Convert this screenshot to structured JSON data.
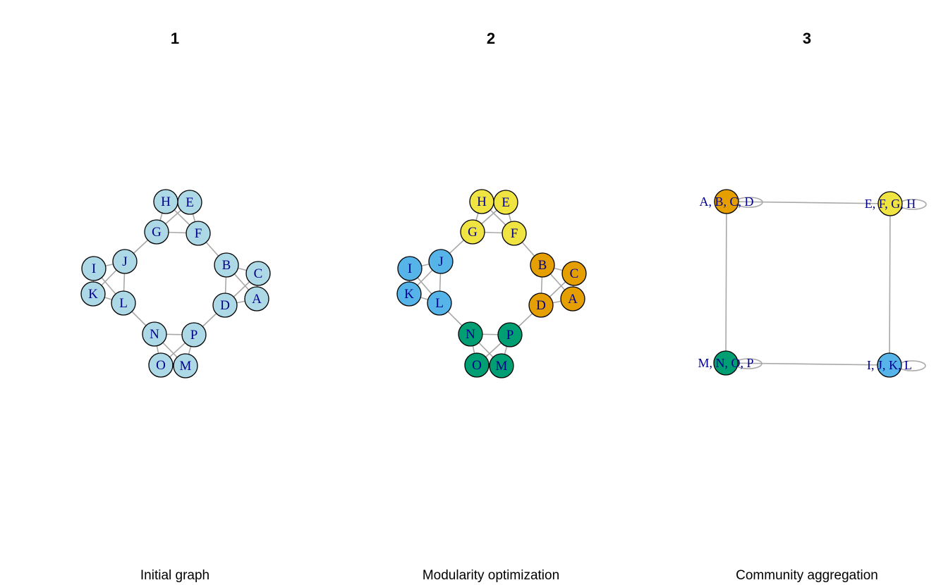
{
  "colors": {
    "initial": "#add8e6",
    "orange": "#e69f00",
    "yellow": "#f0e442",
    "blue": "#56b4e9",
    "green": "#009e73",
    "edge": "#a8a8a8",
    "label": "#00008b"
  },
  "panels": [
    {
      "id": "panel-1",
      "title": "1",
      "caption": "Initial graph",
      "type": "graph",
      "nodes": [
        {
          "id": "A",
          "label": "A",
          "color": "initial"
        },
        {
          "id": "B",
          "label": "B",
          "color": "initial"
        },
        {
          "id": "C",
          "label": "C",
          "color": "initial"
        },
        {
          "id": "D",
          "label": "D",
          "color": "initial"
        },
        {
          "id": "E",
          "label": "E",
          "color": "initial"
        },
        {
          "id": "F",
          "label": "F",
          "color": "initial"
        },
        {
          "id": "G",
          "label": "G",
          "color": "initial"
        },
        {
          "id": "H",
          "label": "H",
          "color": "initial"
        },
        {
          "id": "I",
          "label": "I",
          "color": "initial"
        },
        {
          "id": "J",
          "label": "J",
          "color": "initial"
        },
        {
          "id": "K",
          "label": "K",
          "color": "initial"
        },
        {
          "id": "L",
          "label": "L",
          "color": "initial"
        },
        {
          "id": "M",
          "label": "M",
          "color": "initial"
        },
        {
          "id": "N",
          "label": "N",
          "color": "initial"
        },
        {
          "id": "O",
          "label": "O",
          "color": "initial"
        },
        {
          "id": "P",
          "label": "P",
          "color": "initial"
        }
      ]
    },
    {
      "id": "panel-2",
      "title": "2",
      "caption": "Modularity optimization",
      "type": "graph",
      "nodes": [
        {
          "id": "A",
          "label": "A",
          "color": "orange"
        },
        {
          "id": "B",
          "label": "B",
          "color": "orange"
        },
        {
          "id": "C",
          "label": "C",
          "color": "orange"
        },
        {
          "id": "D",
          "label": "D",
          "color": "orange"
        },
        {
          "id": "E",
          "label": "E",
          "color": "yellow"
        },
        {
          "id": "F",
          "label": "F",
          "color": "yellow"
        },
        {
          "id": "G",
          "label": "G",
          "color": "yellow"
        },
        {
          "id": "H",
          "label": "H",
          "color": "yellow"
        },
        {
          "id": "I",
          "label": "I",
          "color": "blue"
        },
        {
          "id": "J",
          "label": "J",
          "color": "blue"
        },
        {
          "id": "K",
          "label": "K",
          "color": "blue"
        },
        {
          "id": "L",
          "label": "L",
          "color": "blue"
        },
        {
          "id": "M",
          "label": "M",
          "color": "green"
        },
        {
          "id": "N",
          "label": "N",
          "color": "green"
        },
        {
          "id": "O",
          "label": "O",
          "color": "green"
        },
        {
          "id": "P",
          "label": "P",
          "color": "green"
        }
      ]
    },
    {
      "id": "panel-3",
      "title": "3",
      "caption": "Community aggregation",
      "type": "aggregate",
      "nodes": [
        {
          "id": "ABCD",
          "label": "A, B, C, D",
          "color": "orange"
        },
        {
          "id": "EFGH",
          "label": "E, F, G, H",
          "color": "yellow"
        },
        {
          "id": "MNOP",
          "label": "M, N, O, P",
          "color": "green"
        },
        {
          "id": "IJKL",
          "label": "I, J, K, L",
          "color": "blue"
        }
      ],
      "edges": [
        [
          "ABCD",
          "EFGH"
        ],
        [
          "ABCD",
          "MNOP"
        ],
        [
          "EFGH",
          "IJKL"
        ],
        [
          "MNOP",
          "IJKL"
        ]
      ]
    }
  ],
  "graph_edges": [
    [
      "A",
      "B"
    ],
    [
      "A",
      "C"
    ],
    [
      "A",
      "D"
    ],
    [
      "B",
      "C"
    ],
    [
      "B",
      "D"
    ],
    [
      "C",
      "D"
    ],
    [
      "E",
      "F"
    ],
    [
      "E",
      "G"
    ],
    [
      "E",
      "H"
    ],
    [
      "F",
      "G"
    ],
    [
      "F",
      "H"
    ],
    [
      "G",
      "H"
    ],
    [
      "I",
      "J"
    ],
    [
      "I",
      "K"
    ],
    [
      "I",
      "L"
    ],
    [
      "J",
      "K"
    ],
    [
      "J",
      "L"
    ],
    [
      "K",
      "L"
    ],
    [
      "M",
      "N"
    ],
    [
      "M",
      "O"
    ],
    [
      "M",
      "P"
    ],
    [
      "N",
      "O"
    ],
    [
      "N",
      "P"
    ],
    [
      "O",
      "P"
    ],
    [
      "B",
      "F"
    ],
    [
      "G",
      "J"
    ],
    [
      "L",
      "N"
    ],
    [
      "P",
      "D"
    ]
  ]
}
